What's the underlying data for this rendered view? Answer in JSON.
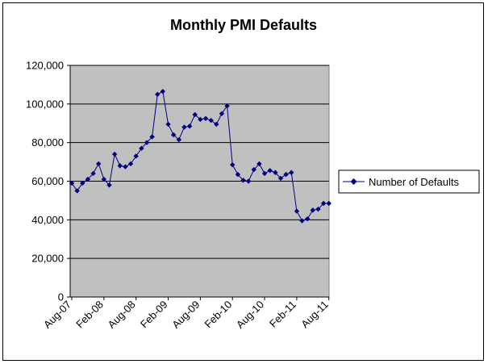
{
  "chart_data": {
    "type": "line",
    "title": "Monthly PMI Defaults",
    "xlabel": "",
    "ylabel": "",
    "ylim": [
      0,
      120000
    ],
    "y_ticks": [
      "0",
      "20,000",
      "40,000",
      "60,000",
      "80,000",
      "100,000",
      "120,000"
    ],
    "x_tick_labels": [
      "Aug-07",
      "Feb-08",
      "Aug-08",
      "Feb-09",
      "Aug-09",
      "Feb-10",
      "Aug-10",
      "Feb-11",
      "Aug-11"
    ],
    "x_start": "2007-08",
    "months_between_ticks": 6,
    "grid": "horizontal",
    "legend_position": "right",
    "plot_background": "#c0c0c0",
    "series": [
      {
        "name": "Number of Defaults",
        "color": "#000080",
        "marker": "diamond",
        "values": [
          59000,
          55000,
          59000,
          61000,
          64000,
          69000,
          61000,
          58000,
          74000,
          68000,
          67500,
          69000,
          73000,
          77000,
          80000,
          83000,
          105000,
          106500,
          89500,
          84000,
          81500,
          88000,
          88500,
          94500,
          92000,
          92500,
          91500,
          89500,
          95000,
          99000,
          68500,
          63500,
          60500,
          60000,
          66000,
          69000,
          64000,
          65500,
          64500,
          61500,
          63500,
          64500,
          44500,
          39500,
          40500,
          45000,
          45500,
          48500,
          48500
        ]
      }
    ]
  }
}
